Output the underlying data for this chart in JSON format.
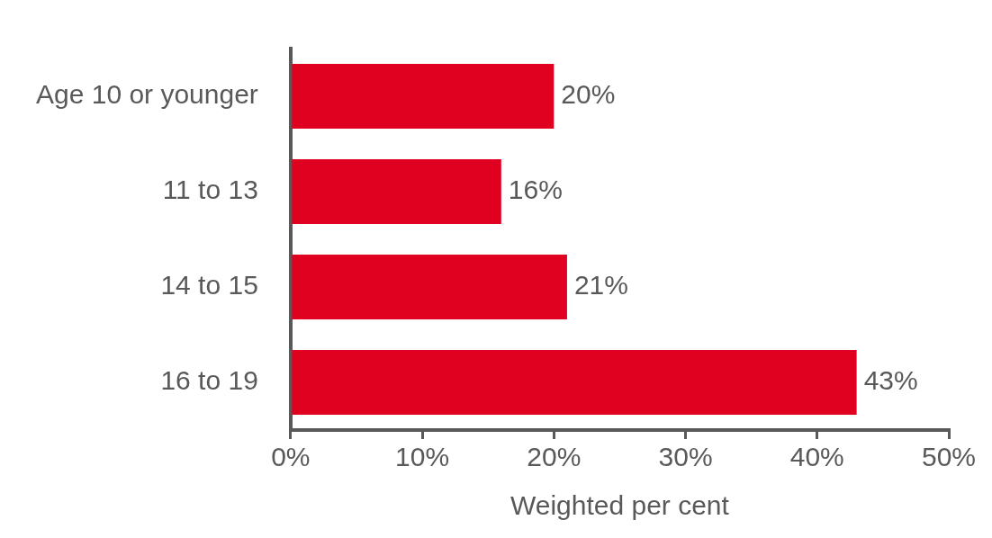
{
  "chart_data": {
    "type": "bar",
    "orientation": "horizontal",
    "xlabel": "Weighted per cent",
    "categories": [
      "Age 10 or younger",
      "11 to 13",
      "14 to 15",
      "16 to 19"
    ],
    "values": [
      20,
      16,
      21,
      43
    ],
    "value_labels": [
      "20%",
      "16%",
      "21%",
      "43%"
    ],
    "color": "#e00020",
    "xlim": [
      0,
      50
    ],
    "xticks": [
      {
        "value": 0,
        "label": "0%"
      },
      {
        "value": 10,
        "label": "10%"
      },
      {
        "value": 20,
        "label": "20%"
      },
      {
        "value": 30,
        "label": "30%"
      },
      {
        "value": 40,
        "label": "40%"
      },
      {
        "value": 50,
        "label": "50%"
      }
    ],
    "grid": false,
    "legend": false
  }
}
